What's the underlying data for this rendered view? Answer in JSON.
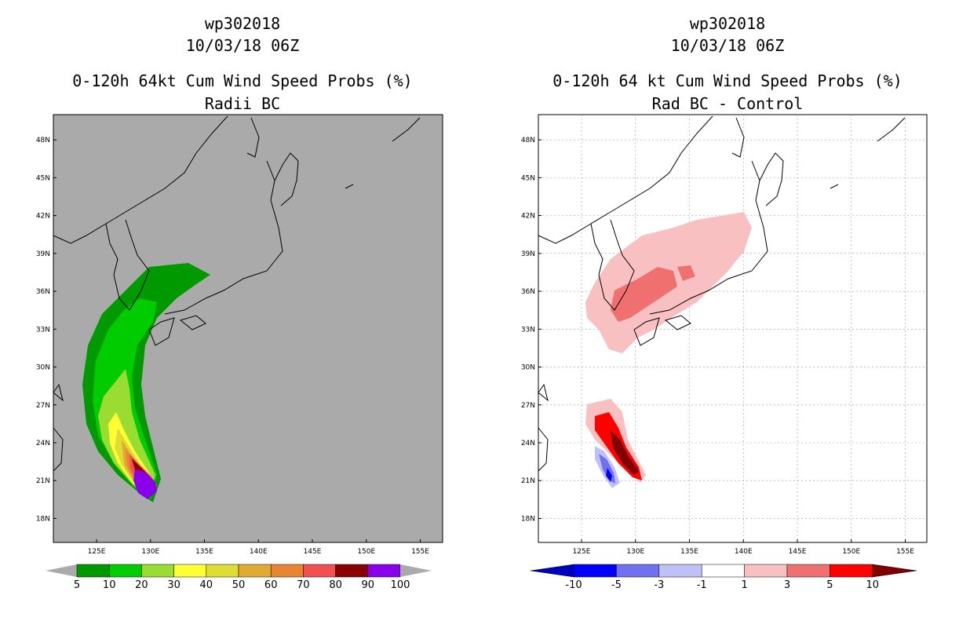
{
  "left_panel": {
    "storm": "wp302018",
    "datetime": "10/03/18 06Z",
    "title": "0-120h 64kt Cum Wind Speed Probs (%)",
    "subtitle": "Radii BC",
    "colorbar": {
      "colors": [
        "#009a00",
        "#00cc00",
        "#99dd33",
        "#ffff33",
        "#dddd33",
        "#e0aa33",
        "#e88533",
        "#f25050",
        "#8b0000",
        "#8b00ea"
      ],
      "labels": [
        "5",
        "10",
        "20",
        "30",
        "40",
        "50",
        "60",
        "70",
        "80",
        "90",
        "100"
      ]
    }
  },
  "right_panel": {
    "storm": "wp302018",
    "datetime": "10/03/18 06Z",
    "title": "0-120h 64 kt Cum Wind Speed Probs (%)",
    "subtitle": "Rad BC - Control",
    "colorbar": {
      "colors": [
        "#0000c0",
        "#0000ff",
        "#7070f0",
        "#c0c0f8",
        "#ffffff",
        "#f8c0c0",
        "#f07070",
        "#ff0000",
        "#800000"
      ],
      "labels": [
        "-10",
        "-5",
        "-3",
        "-1",
        "1",
        "3",
        "5",
        "10"
      ]
    }
  },
  "map": {
    "lat_labels": [
      "48N",
      "45N",
      "42N",
      "39N",
      "36N",
      "33N",
      "30N",
      "27N",
      "24N",
      "21N",
      "18N"
    ],
    "lon_labels": [
      "125E",
      "130E",
      "135E",
      "140E",
      "145E",
      "150E",
      "155E"
    ],
    "lat_values": [
      48,
      45,
      42,
      39,
      36,
      33,
      30,
      27,
      24,
      21,
      18
    ],
    "lon_values": [
      125,
      130,
      135,
      140,
      145,
      150,
      155
    ]
  },
  "colors": {
    "map_background_left": "#aaaaaa",
    "map_background_right": "#ffffff"
  }
}
